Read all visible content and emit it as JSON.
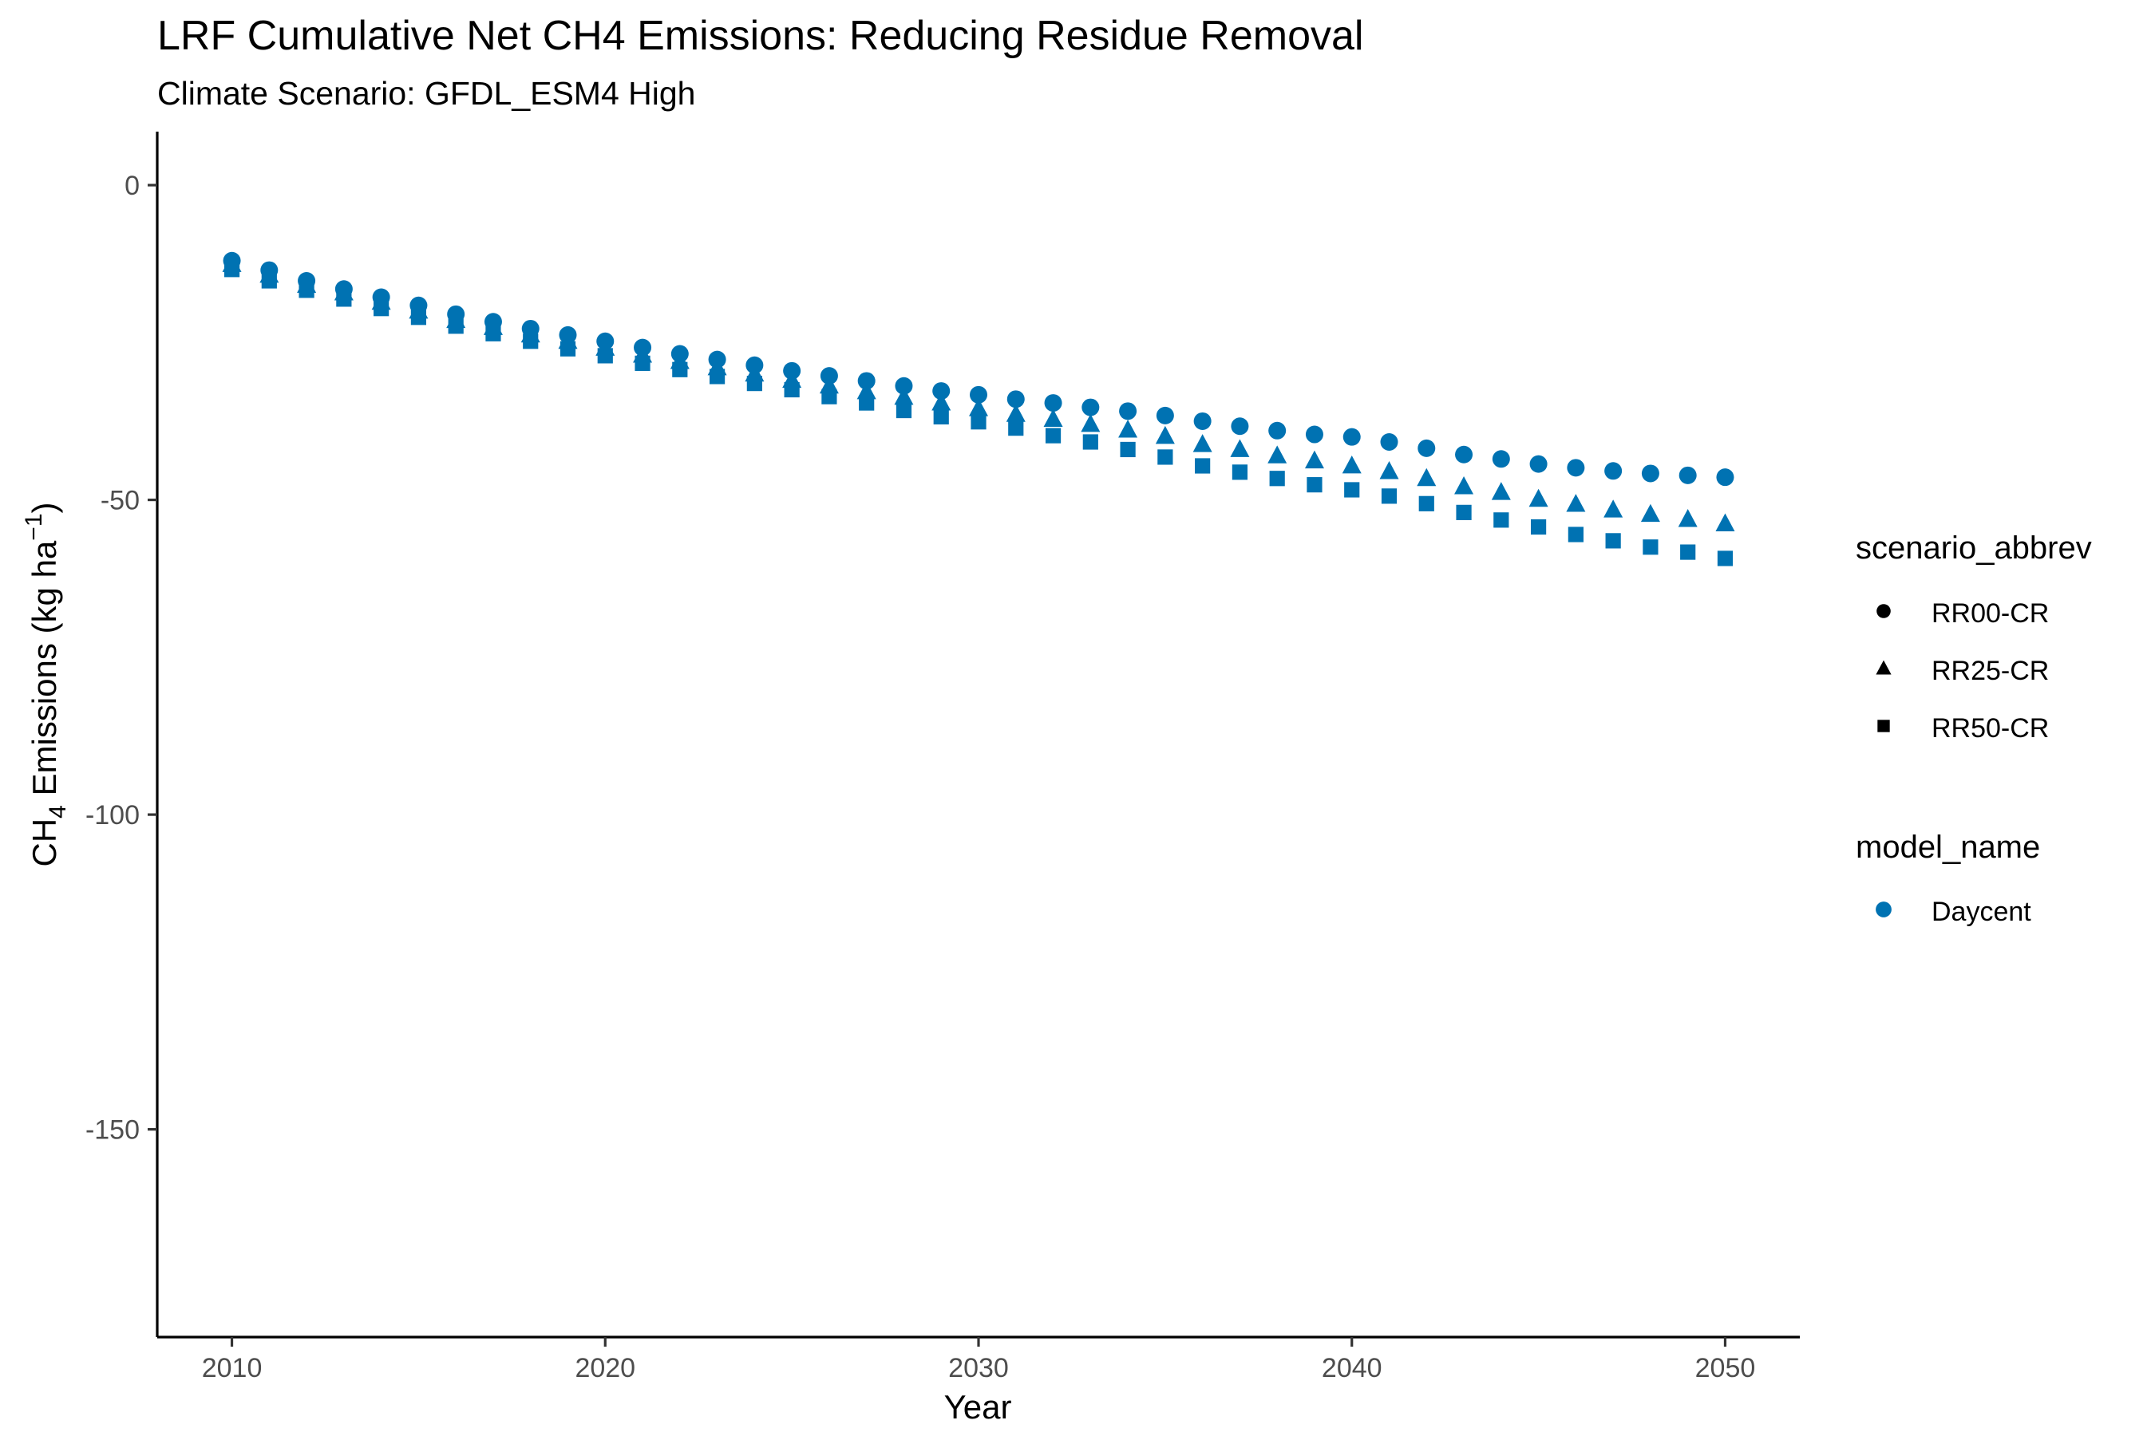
{
  "chart_data": {
    "type": "scatter",
    "title": "LRF  Cumulative Net CH4 Emissions: Reducing Residue Removal",
    "subtitle": "Climate Scenario: GFDL_ESM4 High",
    "xlabel": "Year",
    "ylabel": {
      "prefix": "CH",
      "sub": "4",
      "middle": " Emissions (kg ha",
      "sup": "−1",
      "suffix": ")"
    },
    "xlim": [
      2008,
      2052
    ],
    "ylim": [
      -183,
      8.5
    ],
    "xticks": [
      2010,
      2020,
      2030,
      2040,
      2050
    ],
    "yticks": [
      0,
      -50,
      -100,
      -150
    ],
    "grid": false,
    "legend_position": "right",
    "legends": [
      {
        "title": "scenario_abbrev",
        "items": [
          {
            "label": "RR00-CR",
            "shape": "circle"
          },
          {
            "label": "RR25-CR",
            "shape": "triangle"
          },
          {
            "label": "RR50-CR",
            "shape": "square"
          }
        ]
      },
      {
        "title": "model_name",
        "items": [
          {
            "label": "Daycent",
            "shape": "circle",
            "color": "#0072b2"
          }
        ]
      }
    ],
    "series": [
      {
        "name": "RR00-CR",
        "model": "Daycent",
        "shape": "circle",
        "color": "#0072b2",
        "x": [
          2010,
          2011,
          2012,
          2013,
          2014,
          2015,
          2016,
          2017,
          2018,
          2019,
          2020,
          2021,
          2022,
          2023,
          2024,
          2025,
          2026,
          2027,
          2028,
          2029,
          2030,
          2031,
          2032,
          2033,
          2034,
          2035,
          2036,
          2037,
          2038,
          2039,
          2040,
          2041,
          2042,
          2043,
          2044,
          2045,
          2046,
          2047,
          2048,
          2049,
          2050
        ],
        "y": [
          -12.0,
          -13.5,
          -15.2,
          -16.5,
          -17.8,
          -19.1,
          -20.5,
          -21.7,
          -22.8,
          -23.8,
          -24.8,
          -25.8,
          -26.8,
          -27.7,
          -28.6,
          -29.5,
          -30.3,
          -31.1,
          -31.9,
          -32.7,
          -33.3,
          -34.0,
          -34.6,
          -35.3,
          -35.9,
          -36.6,
          -37.5,
          -38.3,
          -39.0,
          -39.6,
          -40.0,
          -40.8,
          -41.8,
          -42.8,
          -43.5,
          -44.3,
          -44.9,
          -45.4,
          -45.8,
          -46.1,
          -46.4
        ]
      },
      {
        "name": "RR25-CR",
        "model": "Daycent",
        "shape": "triangle",
        "color": "#0072b2",
        "x": [
          2010,
          2011,
          2012,
          2013,
          2014,
          2015,
          2016,
          2017,
          2018,
          2019,
          2020,
          2021,
          2022,
          2023,
          2024,
          2025,
          2026,
          2027,
          2028,
          2029,
          2030,
          2031,
          2032,
          2033,
          2034,
          2035,
          2036,
          2037,
          2038,
          2039,
          2040,
          2041,
          2042,
          2043,
          2044,
          2045,
          2046,
          2047,
          2048,
          2049,
          2050
        ],
        "y": [
          -12.6,
          -14.3,
          -15.9,
          -17.1,
          -18.6,
          -20.0,
          -21.5,
          -22.6,
          -23.8,
          -24.8,
          -25.9,
          -27.0,
          -28.0,
          -29.0,
          -30.0,
          -31.0,
          -31.9,
          -32.8,
          -33.7,
          -34.6,
          -35.5,
          -36.4,
          -37.2,
          -38.0,
          -38.9,
          -39.9,
          -41.2,
          -42.0,
          -43.0,
          -43.8,
          -44.6,
          -45.5,
          -46.6,
          -47.9,
          -48.8,
          -49.9,
          -50.7,
          -51.6,
          -52.3,
          -53.1,
          -53.8
        ]
      },
      {
        "name": "RR50-CR",
        "model": "Daycent",
        "shape": "square",
        "color": "#0072b2",
        "x": [
          2010,
          2011,
          2012,
          2013,
          2014,
          2015,
          2016,
          2017,
          2018,
          2019,
          2020,
          2021,
          2022,
          2023,
          2024,
          2025,
          2026,
          2027,
          2028,
          2029,
          2030,
          2031,
          2032,
          2033,
          2034,
          2035,
          2036,
          2037,
          2038,
          2039,
          2040,
          2041,
          2042,
          2043,
          2044,
          2045,
          2046,
          2047,
          2048,
          2049,
          2050
        ],
        "y": [
          -13.4,
          -15.2,
          -16.7,
          -18.1,
          -19.6,
          -21.0,
          -22.4,
          -23.6,
          -24.8,
          -26.0,
          -27.1,
          -28.3,
          -29.3,
          -30.4,
          -31.5,
          -32.5,
          -33.6,
          -34.6,
          -35.8,
          -36.8,
          -37.6,
          -38.6,
          -39.8,
          -40.8,
          -42.0,
          -43.2,
          -44.6,
          -45.6,
          -46.6,
          -47.6,
          -48.4,
          -49.4,
          -50.6,
          -52.0,
          -53.2,
          -54.3,
          -55.5,
          -56.5,
          -57.5,
          -58.3,
          -59.3
        ]
      }
    ]
  }
}
